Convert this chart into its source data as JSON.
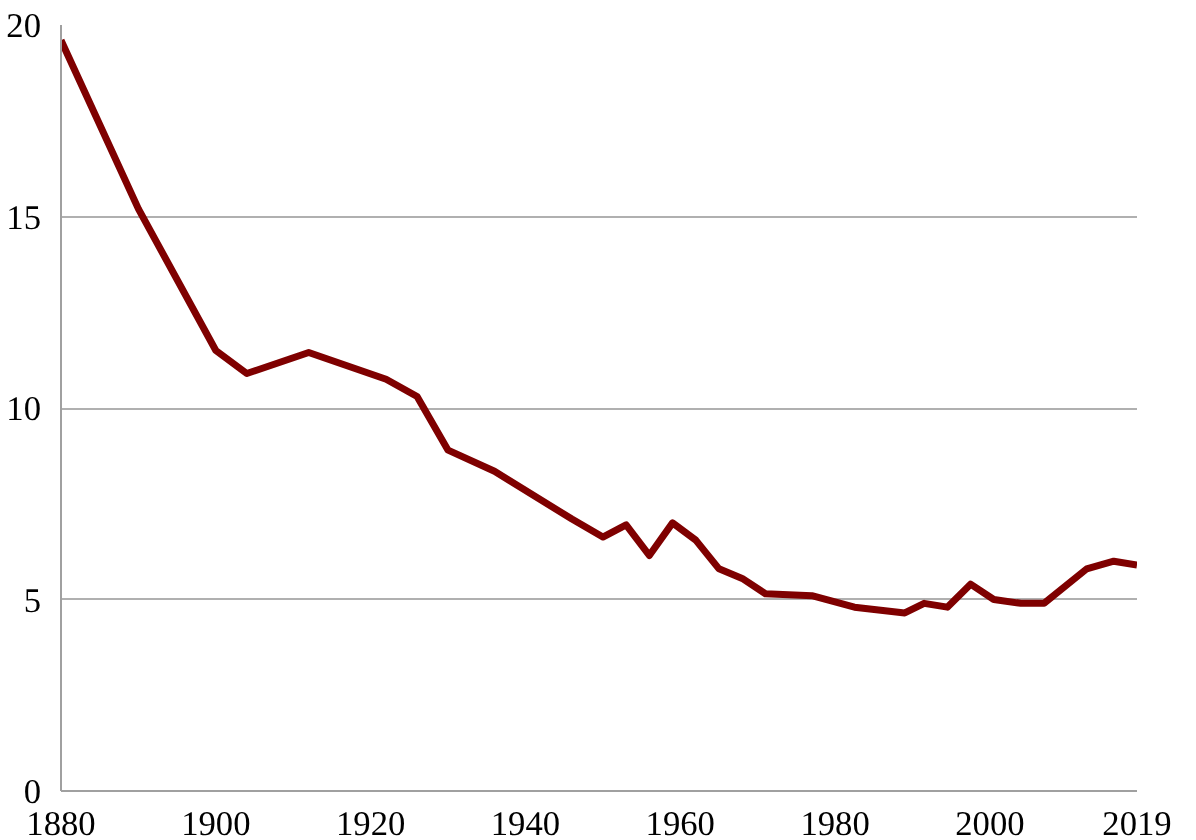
{
  "chart_data": {
    "type": "line",
    "x": [
      1880,
      1890,
      1900,
      1904,
      1912,
      1922,
      1926,
      1930,
      1936,
      1946,
      1950,
      1953,
      1956,
      1959,
      1962,
      1965,
      1968,
      1971,
      1977,
      1982.5,
      1989,
      1991.5,
      1994.5,
      1997.5,
      2000.5,
      2004,
      2007,
      2012.5,
      2016,
      2019
    ],
    "series": [
      {
        "color": "#7f0000",
        "values": [
          19.6,
          15.2,
          11.5,
          10.9,
          11.45,
          10.75,
          10.3,
          8.9,
          8.35,
          7.1,
          6.63,
          6.95,
          6.15,
          7.0,
          6.55,
          5.8,
          5.55,
          5.15,
          5.1,
          4.8,
          4.65,
          4.9,
          4.8,
          5.4,
          5.0,
          4.9,
          4.9,
          5.8,
          6.0,
          5.9
        ]
      }
    ],
    "xlim": [
      1880,
      2019
    ],
    "xticks": [
      1880,
      1900,
      1920,
      1940,
      1960,
      1980,
      2000,
      2019
    ],
    "ylim": [
      0,
      20
    ],
    "yticks": [
      0,
      5,
      10,
      15,
      20
    ],
    "grid": "y",
    "marker": "none",
    "line_style": "solid"
  }
}
